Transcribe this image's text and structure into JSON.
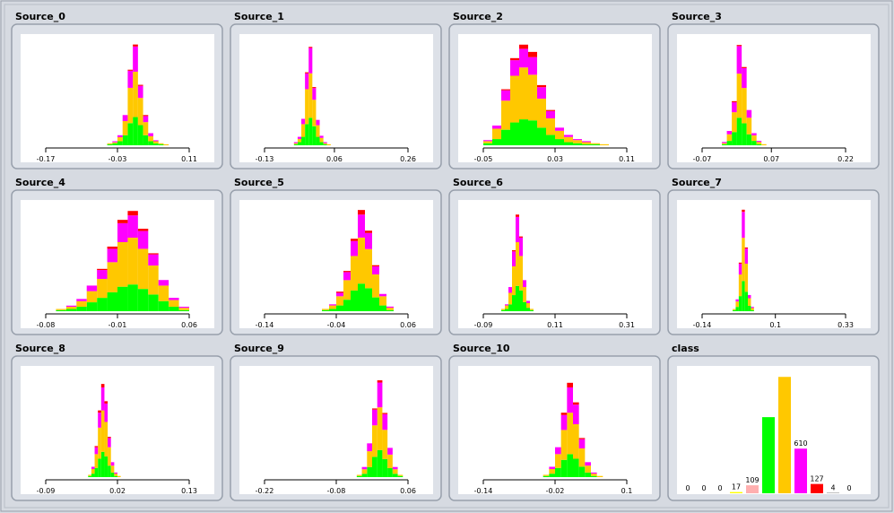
{
  "chart_data": [
    {
      "type": "histogram",
      "title": "Source_0",
      "xlim": [
        -0.17,
        0.11
      ],
      "xticks": [
        -0.17,
        -0.03,
        0.11
      ],
      "ylim": [
        0,
        105
      ],
      "bins": [
        -0.05,
        -0.04,
        -0.03,
        -0.02,
        -0.01,
        0,
        0.01,
        0.02,
        0.03,
        0.04,
        0.05,
        0.06,
        0.07
      ],
      "series": [
        {
          "color": "#00ff00",
          "values": [
            1,
            2,
            4,
            10,
            22,
            28,
            20,
            10,
            4,
            2,
            1,
            0
          ]
        },
        {
          "color": "#ffc800",
          "values": [
            1,
            1,
            4,
            14,
            35,
            45,
            27,
            13,
            5,
            2,
            1,
            1
          ]
        },
        {
          "color": "#ff00ff",
          "values": [
            0,
            1,
            2,
            6,
            17,
            25,
            12,
            6,
            3,
            1,
            0,
            0
          ]
        },
        {
          "color": "#ff0000",
          "values": [
            0,
            0,
            0,
            0,
            1,
            2,
            1,
            1,
            0,
            0,
            0,
            0
          ]
        }
      ]
    },
    {
      "type": "histogram",
      "title": "Source_1",
      "xlim": [
        -0.13,
        0.26
      ],
      "xticks": [
        -0.13,
        0.06,
        0.26
      ],
      "ylim": [
        0,
        100
      ],
      "bins": [
        -0.06,
        -0.05,
        -0.04,
        -0.03,
        -0.02,
        -0.01,
        0,
        0.01,
        0.02,
        0.03,
        0.04,
        0.05,
        0.06
      ],
      "series": [
        {
          "color": "#00ff00",
          "values": [
            0,
            1,
            3,
            8,
            20,
            26,
            18,
            8,
            3,
            1,
            0,
            0
          ]
        },
        {
          "color": "#ffc800",
          "values": [
            0,
            1,
            3,
            12,
            33,
            42,
            25,
            11,
            4,
            1,
            1,
            0
          ]
        },
        {
          "color": "#ff00ff",
          "values": [
            0,
            1,
            2,
            5,
            15,
            24,
            11,
            5,
            2,
            1,
            0,
            0
          ]
        },
        {
          "color": "#ff0000",
          "values": [
            0,
            0,
            0,
            0,
            1,
            1,
            1,
            0,
            0,
            0,
            0,
            0
          ]
        }
      ]
    },
    {
      "type": "histogram",
      "title": "Source_2",
      "xlim": [
        -0.05,
        0.11
      ],
      "xticks": [
        -0.05,
        0.03,
        0.11
      ],
      "ylim": [
        0,
        102
      ],
      "bins": [
        -0.05,
        -0.04,
        -0.03,
        -0.02,
        -0.01,
        0,
        0.01,
        0.02,
        0.03,
        0.04,
        0.05,
        0.06,
        0.07,
        0.08,
        0.09
      ],
      "series": [
        {
          "color": "#00ff00",
          "values": [
            2,
            6,
            15,
            22,
            25,
            24,
            17,
            10,
            6,
            3,
            2,
            1,
            1,
            0
          ]
        },
        {
          "color": "#ffc800",
          "values": [
            2,
            10,
            28,
            45,
            50,
            44,
            28,
            16,
            8,
            5,
            3,
            2,
            1,
            1
          ]
        },
        {
          "color": "#ff00ff",
          "values": [
            1,
            3,
            10,
            15,
            18,
            17,
            11,
            7,
            3,
            2,
            1,
            1,
            0,
            0
          ]
        },
        {
          "color": "#ff0000",
          "values": [
            0,
            0,
            1,
            2,
            4,
            5,
            2,
            1,
            0,
            0,
            0,
            0,
            0,
            0
          ]
        }
      ]
    },
    {
      "type": "histogram",
      "title": "Source_3",
      "xlim": [
        -0.07,
        0.22
      ],
      "xticks": [
        -0.07,
        0.07,
        0.22
      ],
      "ylim": [
        0,
        96
      ],
      "bins": [
        -0.04,
        -0.03,
        -0.02,
        -0.01,
        0,
        0.01,
        0.02,
        0.03,
        0.04,
        0.05,
        0.06,
        0.07
      ],
      "series": [
        {
          "color": "#00ff00",
          "values": [
            0,
            1,
            4,
            12,
            25,
            20,
            10,
            4,
            1,
            0,
            0
          ]
        },
        {
          "color": "#ffc800",
          "values": [
            0,
            1,
            6,
            18,
            40,
            32,
            15,
            5,
            2,
            1,
            0
          ]
        },
        {
          "color": "#ff00ff",
          "values": [
            0,
            1,
            3,
            9,
            25,
            18,
            7,
            2,
            1,
            0,
            0
          ]
        },
        {
          "color": "#ff0000",
          "values": [
            0,
            0,
            0,
            1,
            1,
            1,
            0,
            0,
            0,
            0,
            0
          ]
        }
      ]
    },
    {
      "type": "histogram",
      "title": "Source_4",
      "xlim": [
        -0.08,
        0.06
      ],
      "xticks": [
        -0.08,
        -0.01,
        0.06
      ],
      "ylim": [
        0,
        95
      ],
      "bins": [
        -0.07,
        -0.06,
        -0.05,
        -0.04,
        -0.03,
        -0.02,
        -0.01,
        0,
        0.01,
        0.02,
        0.03,
        0.04,
        0.05,
        0.06
      ],
      "series": [
        {
          "color": "#00ff00",
          "values": [
            1,
            2,
            4,
            8,
            12,
            17,
            22,
            24,
            20,
            15,
            9,
            4,
            1
          ]
        },
        {
          "color": "#ffc800",
          "values": [
            1,
            2,
            5,
            10,
            17,
            27,
            40,
            42,
            36,
            26,
            14,
            6,
            2
          ]
        },
        {
          "color": "#ff00ff",
          "values": [
            0,
            1,
            2,
            5,
            8,
            12,
            17,
            20,
            16,
            10,
            5,
            2,
            1
          ]
        },
        {
          "color": "#ff0000",
          "values": [
            0,
            0,
            0,
            0,
            1,
            2,
            3,
            4,
            2,
            1,
            0,
            0,
            0
          ]
        }
      ]
    },
    {
      "type": "histogram",
      "title": "Source_5",
      "xlim": [
        -0.14,
        0.06
      ],
      "xticks": [
        -0.14,
        -0.04,
        0.06
      ],
      "ylim": [
        0,
        92
      ],
      "bins": [
        -0.07,
        -0.06,
        -0.05,
        -0.04,
        -0.03,
        -0.02,
        -0.01,
        0,
        0.01,
        0.02,
        0.03,
        0.04
      ],
      "series": [
        {
          "color": "#00ff00",
          "values": [
            0,
            1,
            2,
            5,
            10,
            18,
            24,
            20,
            12,
            5,
            1
          ]
        },
        {
          "color": "#ffc800",
          "values": [
            0,
            1,
            3,
            8,
            17,
            30,
            40,
            34,
            20,
            8,
            2
          ]
        },
        {
          "color": "#ff00ff",
          "values": [
            0,
            0,
            1,
            3,
            7,
            13,
            20,
            14,
            7,
            2,
            1
          ]
        },
        {
          "color": "#ff0000",
          "values": [
            0,
            0,
            0,
            1,
            1,
            2,
            4,
            2,
            1,
            0,
            0
          ]
        }
      ]
    },
    {
      "type": "histogram",
      "title": "Source_6",
      "xlim": [
        -0.09,
        0.31
      ],
      "xticks": [
        -0.09,
        0.11,
        0.31
      ],
      "ylim": [
        0,
        92
      ],
      "bins": [
        -0.05,
        -0.04,
        -0.03,
        -0.02,
        -0.01,
        0,
        0.01,
        0.02,
        0.03,
        0.04,
        0.05,
        0.06
      ],
      "series": [
        {
          "color": "#00ff00",
          "values": [
            0,
            1,
            2,
            6,
            14,
            22,
            18,
            8,
            3,
            1,
            0
          ]
        },
        {
          "color": "#ffc800",
          "values": [
            0,
            1,
            3,
            10,
            25,
            38,
            30,
            13,
            4,
            1,
            0
          ]
        },
        {
          "color": "#ff00ff",
          "values": [
            0,
            0,
            1,
            5,
            13,
            22,
            16,
            6,
            2,
            0,
            0
          ]
        },
        {
          "color": "#ff0000",
          "values": [
            0,
            0,
            0,
            0,
            1,
            2,
            1,
            0,
            0,
            0,
            0
          ]
        }
      ]
    },
    {
      "type": "histogram",
      "title": "Source_7",
      "xlim": [
        -0.14,
        0.33
      ],
      "xticks": [
        -0.14,
        0.1,
        0.33
      ],
      "ylim": [
        0,
        98
      ],
      "bins": [
        -0.04,
        -0.03,
        -0.02,
        -0.01,
        0,
        0.01,
        0.02,
        0.03,
        0.04
      ],
      "series": [
        {
          "color": "#00ff00",
          "values": [
            1,
            4,
            14,
            28,
            18,
            5,
            1,
            0
          ]
        },
        {
          "color": "#ffc800",
          "values": [
            1,
            5,
            20,
            40,
            26,
            7,
            2,
            0
          ]
        },
        {
          "color": "#ff00ff",
          "values": [
            0,
            2,
            10,
            24,
            14,
            3,
            1,
            0
          ]
        },
        {
          "color": "#ff0000",
          "values": [
            0,
            0,
            1,
            2,
            1,
            0,
            0,
            0
          ]
        }
      ]
    },
    {
      "type": "histogram",
      "title": "Source_8",
      "xlim": [
        -0.09,
        0.13
      ],
      "xticks": [
        -0.09,
        0.02,
        0.13
      ],
      "ylim": [
        0,
        92
      ],
      "bins": [
        -0.03,
        -0.025,
        -0.02,
        -0.015,
        -0.01,
        -0.005,
        0,
        0.005,
        0.01,
        0.015,
        0.02,
        0.025,
        0.03
      ],
      "series": [
        {
          "color": "#00ff00",
          "values": [
            0,
            1,
            3,
            8,
            16,
            22,
            18,
            10,
            4,
            1,
            0,
            0
          ]
        },
        {
          "color": "#ffc800",
          "values": [
            0,
            1,
            4,
            12,
            27,
            36,
            30,
            16,
            6,
            2,
            1,
            0
          ]
        },
        {
          "color": "#ff00ff",
          "values": [
            0,
            0,
            2,
            6,
            13,
            20,
            16,
            8,
            3,
            1,
            0,
            0
          ]
        },
        {
          "color": "#ff0000",
          "values": [
            0,
            0,
            0,
            1,
            2,
            3,
            2,
            1,
            0,
            0,
            0,
            0
          ]
        }
      ]
    },
    {
      "type": "histogram",
      "title": "Source_9",
      "xlim": [
        -0.22,
        0.06
      ],
      "xticks": [
        -0.22,
        -0.08,
        0.06
      ],
      "ylim": [
        0,
        94
      ],
      "bins": [
        -0.04,
        -0.03,
        -0.02,
        -0.01,
        0,
        0.01,
        0.02,
        0.03,
        0.04,
        0.05
      ],
      "series": [
        {
          "color": "#00ff00",
          "values": [
            1,
            3,
            9,
            18,
            24,
            16,
            8,
            3,
            1
          ]
        },
        {
          "color": "#ffc800",
          "values": [
            1,
            4,
            14,
            28,
            38,
            26,
            12,
            4,
            1
          ]
        },
        {
          "color": "#ff00ff",
          "values": [
            0,
            2,
            7,
            14,
            22,
            14,
            6,
            2,
            0
          ]
        },
        {
          "color": "#ff0000",
          "values": [
            0,
            0,
            0,
            1,
            2,
            1,
            0,
            0,
            0
          ]
        }
      ]
    },
    {
      "type": "histogram",
      "title": "Source_10",
      "xlim": [
        -0.14,
        0.1
      ],
      "xticks": [
        -0.14,
        -0.02,
        0.1
      ],
      "ylim": [
        0,
        92
      ],
      "bins": [
        -0.04,
        -0.03,
        -0.02,
        -0.01,
        0,
        0.01,
        0.02,
        0.03,
        0.04,
        0.05,
        0.06
      ],
      "series": [
        {
          "color": "#00ff00",
          "values": [
            1,
            3,
            8,
            15,
            20,
            16,
            9,
            4,
            1,
            0
          ]
        },
        {
          "color": "#ffc800",
          "values": [
            1,
            4,
            12,
            26,
            36,
            30,
            16,
            6,
            2,
            1
          ]
        },
        {
          "color": "#ff00ff",
          "values": [
            0,
            2,
            6,
            13,
            22,
            17,
            8,
            3,
            1,
            0
          ]
        },
        {
          "color": "#ff0000",
          "values": [
            0,
            0,
            0,
            2,
            4,
            2,
            1,
            0,
            0,
            0
          ]
        }
      ]
    },
    {
      "type": "bar",
      "title": "class",
      "ylim": [
        0,
        1740
      ],
      "categories": [
        null,
        null,
        null,
        null,
        null,
        null,
        null,
        null,
        null,
        null,
        null
      ],
      "values": [
        0,
        0,
        0,
        17,
        109,
        1040,
        1590,
        610,
        127,
        4,
        0
      ],
      "value_labels": [
        "0",
        "0",
        "0",
        "17",
        "109",
        null,
        null,
        "610",
        "127",
        "4",
        "0"
      ],
      "colors": [
        "#0000ff",
        "#00ffff",
        "#808080",
        "#ffff00",
        "#ffafaf",
        "#00ff00",
        "#ffc800",
        "#ff00ff",
        "#ff0000",
        "#404040",
        "#000000"
      ]
    }
  ]
}
